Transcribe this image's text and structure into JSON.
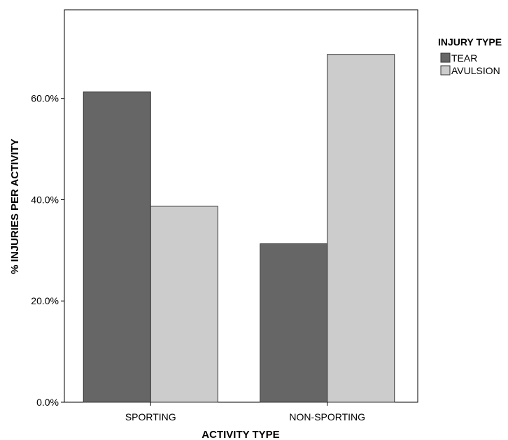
{
  "chart_data": {
    "type": "bar",
    "categories": [
      "SPORTING",
      "NON-SPORTING"
    ],
    "series": [
      {
        "name": "TEAR",
        "values": [
          61.3,
          31.3
        ],
        "color": "#666666"
      },
      {
        "name": "AVULSION",
        "values": [
          38.7,
          68.7
        ],
        "color": "#cccccc"
      }
    ],
    "xlabel": "ACTIVITY TYPE",
    "ylabel": "% INJURIES PER ACTIVITY",
    "ylim": [
      0,
      77.5
    ],
    "yticks": [
      0,
      20,
      40,
      60
    ],
    "ytick_labels": [
      "0.0%",
      "20.0%",
      "40.0%",
      "60.0%"
    ],
    "legend": {
      "title": "INJURY TYPE",
      "position": "top-right"
    },
    "grid": false
  }
}
